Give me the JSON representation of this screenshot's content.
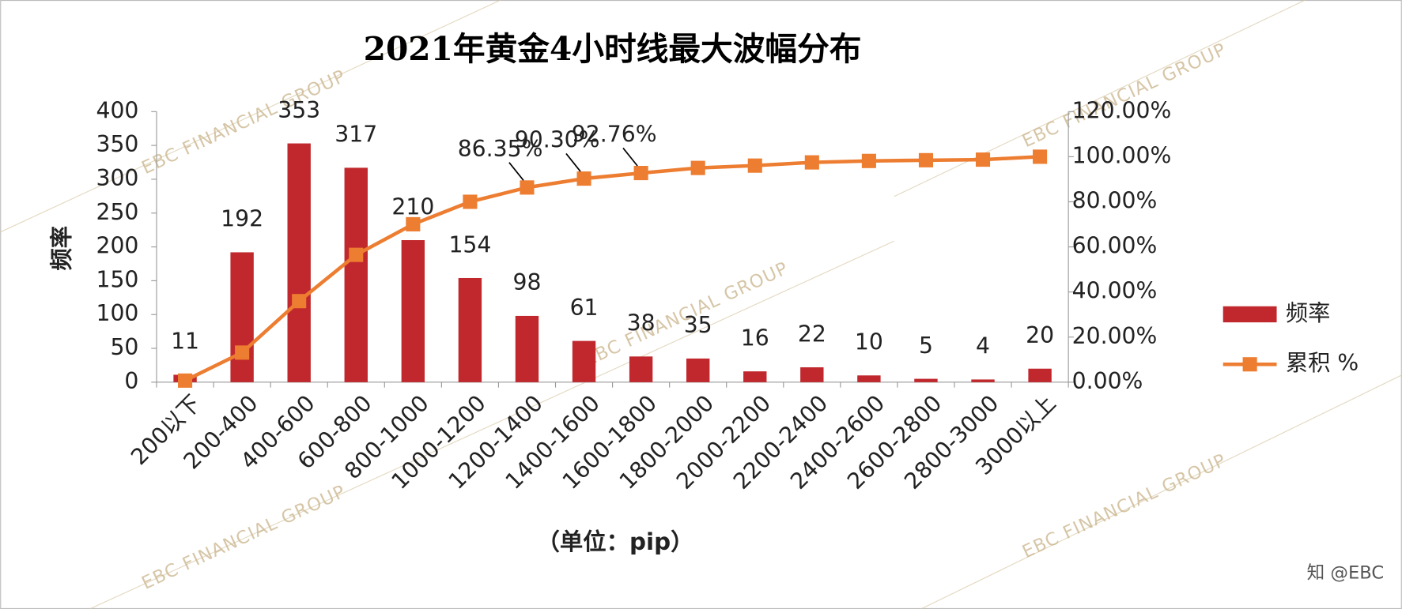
{
  "chart_data": {
    "type": "bar_line",
    "title": "2021年黄金4小时线最大波幅分布",
    "ylabel": "频率",
    "xlabel": "（单位：pip）",
    "categories": [
      "200以下",
      "200-400",
      "400-600",
      "600-800",
      "800-1000",
      "1000-1200",
      "1200-1400",
      "1400-1600",
      "1600-1800",
      "1800-2000",
      "2000-2200",
      "2200-2400",
      "2400-2600",
      "2600-2800",
      "2800-3000",
      "3000以上"
    ],
    "series": [
      {
        "name": "频率",
        "type": "bar",
        "color": "#c0282d",
        "values": [
          11,
          192,
          353,
          317,
          210,
          154,
          98,
          61,
          38,
          35,
          16,
          22,
          10,
          5,
          4,
          20
        ]
      },
      {
        "name": "累积 %",
        "type": "line",
        "axis": "y2",
        "color": "#ed7d31",
        "values": [
          0.71,
          13.13,
          35.96,
          56.47,
          70.05,
          80.01,
          86.35,
          90.3,
          92.76,
          95.02,
          96.05,
          97.48,
          98.12,
          98.45,
          98.71,
          100.0
        ],
        "value_labels": [
          null,
          null,
          null,
          null,
          null,
          null,
          "86.35%",
          "90.30%",
          "92.76%",
          null,
          null,
          null,
          null,
          null,
          null,
          null
        ]
      }
    ],
    "ylim": [
      0,
      400
    ],
    "yticks": [
      0,
      50,
      100,
      150,
      200,
      250,
      300,
      350,
      400
    ],
    "y2lim": [
      0,
      120
    ],
    "y2ticks": [
      {
        "value": 0,
        "label": "0.00%"
      },
      {
        "value": 20,
        "label": "20.00%"
      },
      {
        "value": 40,
        "label": "40.00%"
      },
      {
        "value": 60,
        "label": "60.00%"
      },
      {
        "value": 80,
        "label": "80.00%"
      },
      {
        "value": 100,
        "label": "100.00%"
      },
      {
        "value": 120,
        "label": "120.00%"
      }
    ],
    "legend": "right"
  },
  "watermark": "EBC FINANCIAL GROUP",
  "source": "知 @EBC"
}
